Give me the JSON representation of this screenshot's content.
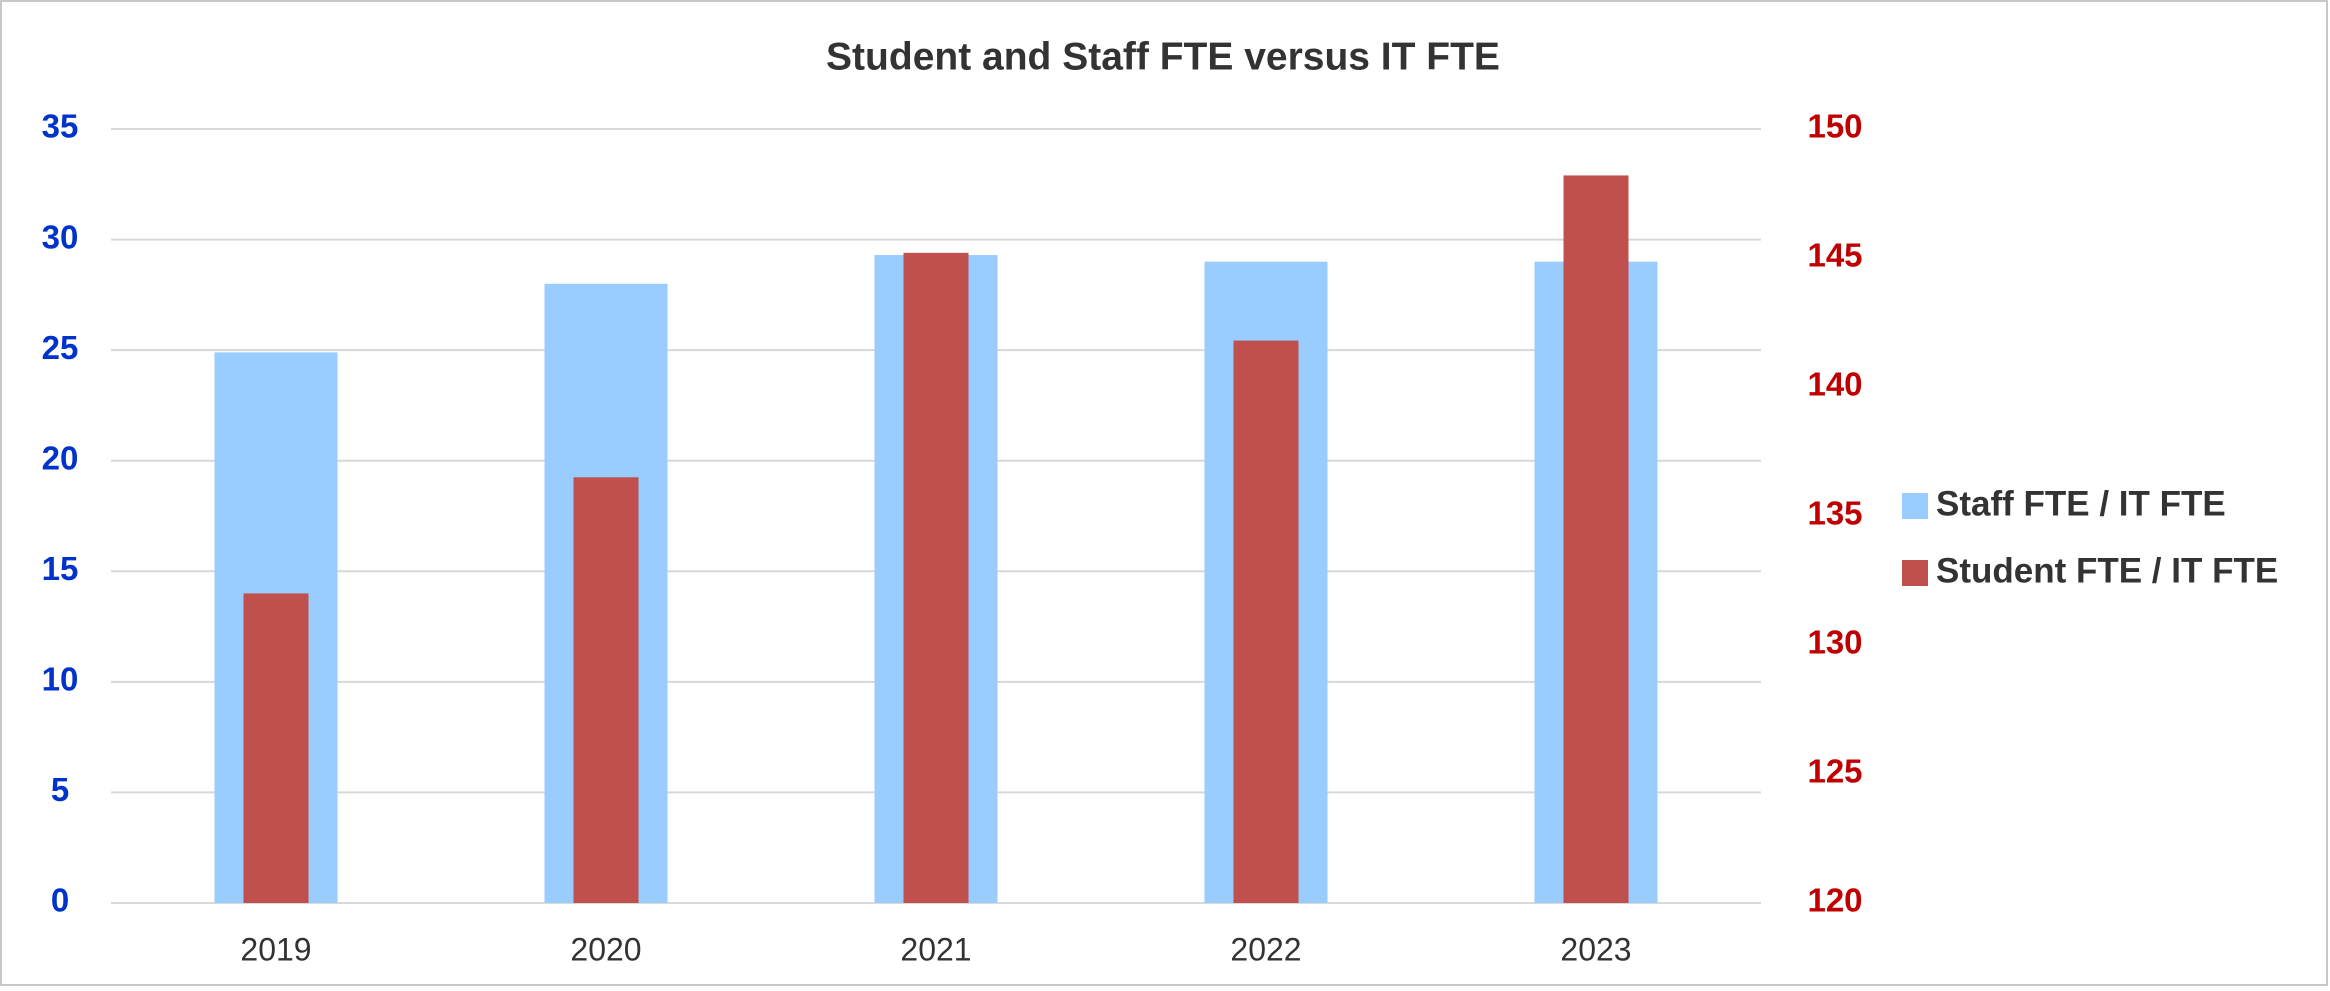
{
  "chart_data": {
    "type": "bar",
    "title": "Student and Staff FTE versus IT FTE",
    "categories": [
      "2019",
      "2020",
      "2021",
      "2022",
      "2023"
    ],
    "series": [
      {
        "name": "Staff FTE / IT FTE",
        "color": "#99ccff",
        "values": [
          24.9,
          28,
          29.3,
          29,
          29
        ]
      },
      {
        "name": "Student FTE / IT FTE",
        "color": "#c0504d",
        "axis": "y2",
        "values": [
          132,
          136.5,
          145.2,
          141.8,
          148.2
        ]
      }
    ],
    "ylim": [
      0,
      35
    ],
    "yticks": [
      0,
      5,
      10,
      15,
      20,
      25,
      30,
      35
    ],
    "y2lim": [
      120,
      150
    ],
    "y2ticks": [
      120,
      125,
      130,
      135,
      140,
      145,
      150
    ],
    "ycolor": "#0033cc",
    "y2color": "#c00000",
    "grid": true,
    "legend": "right"
  }
}
